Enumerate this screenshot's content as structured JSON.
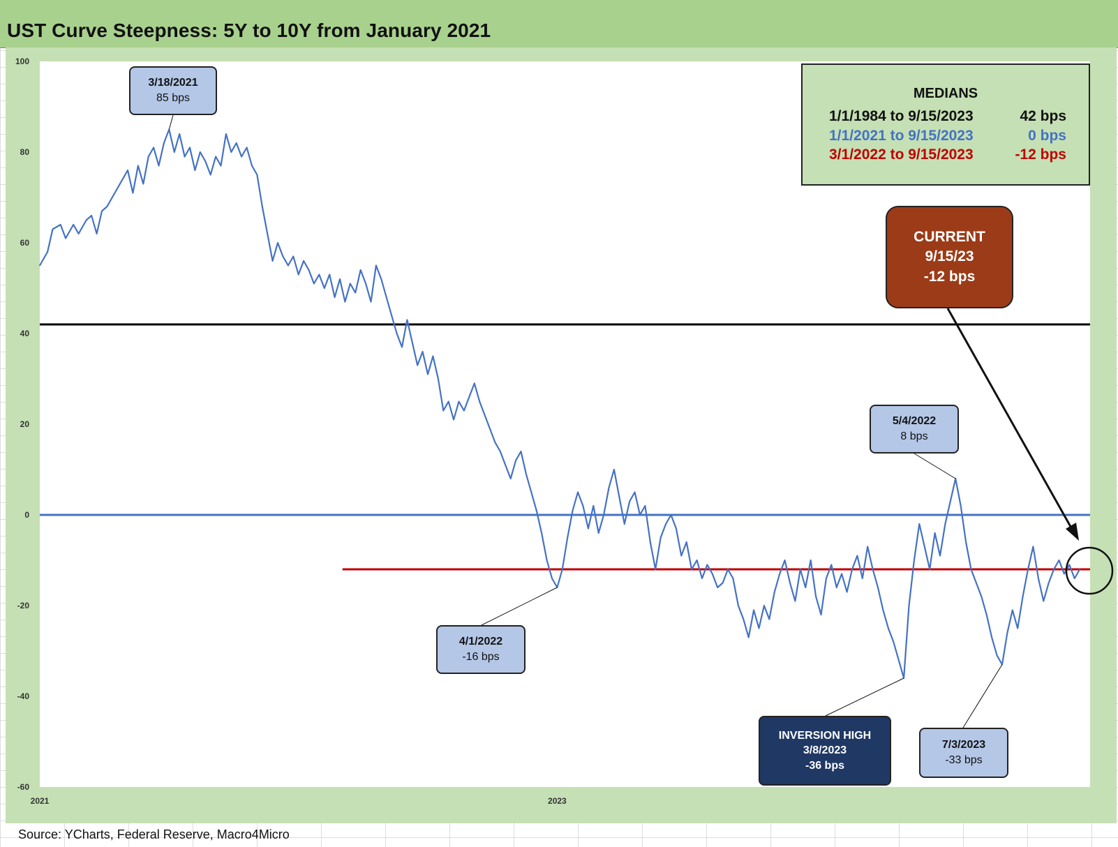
{
  "title": "UST Curve Steepness: 5Y to 10Y from January 2021",
  "source": "Source: YCharts, Federal Reserve, Macro4Micro",
  "colors": {
    "series": "#4472c4",
    "median_1984": "#000000",
    "median_2021": "#4472c4",
    "median_2022": "#c00000"
  },
  "medians": {
    "title": "MEDIANS",
    "rows": [
      {
        "label": "1/1/1984 to 9/15/2023",
        "value": "42 bps",
        "color": "#111111"
      },
      {
        "label": "1/1/2021 to 9/15/2023",
        "value": "0 bps",
        "color": "#4472c4"
      },
      {
        "label": "3/1/2022 to 9/15/2023",
        "value": "-12 bps",
        "color": "#c00000"
      }
    ]
  },
  "callouts": {
    "peak": {
      "line1": "3/18/2021",
      "line2": "85 bps"
    },
    "apr2022": {
      "line1": "4/1/2022",
      "line2": "-16 bps"
    },
    "may2022": {
      "line1": "5/4/2022",
      "line2": "8 bps"
    },
    "inversion": {
      "line1": "INVERSION HIGH",
      "line2": "3/8/2023",
      "line3": "-36 bps"
    },
    "jul2023": {
      "line1": "7/3/2023",
      "line2": "-33 bps"
    },
    "current": {
      "line1": "CURRENT",
      "line2": "9/15/23",
      "line3": "-12 bps"
    }
  },
  "chart_data": {
    "type": "line",
    "ylim": [
      -60,
      100
    ],
    "y_ticks": [
      "100",
      "80",
      "60",
      "40",
      "20",
      "0",
      "-20",
      "-40",
      "-60"
    ],
    "x_ticks": [
      "2021",
      "2023"
    ],
    "grid": false,
    "series": [
      {
        "values": [
          [
            0,
            55
          ],
          [
            0.03,
            58
          ],
          [
            0.05,
            63
          ],
          [
            0.08,
            64
          ],
          [
            0.1,
            61
          ],
          [
            0.13,
            64
          ],
          [
            0.15,
            62
          ],
          [
            0.18,
            65
          ],
          [
            0.2,
            66
          ],
          [
            0.22,
            62
          ],
          [
            0.24,
            67
          ],
          [
            0.26,
            68
          ],
          [
            0.28,
            70
          ],
          [
            0.3,
            72
          ],
          [
            0.32,
            74
          ],
          [
            0.34,
            76
          ],
          [
            0.36,
            71
          ],
          [
            0.38,
            77
          ],
          [
            0.4,
            73
          ],
          [
            0.42,
            79
          ],
          [
            0.44,
            81
          ],
          [
            0.46,
            77
          ],
          [
            0.48,
            82
          ],
          [
            0.5,
            85
          ],
          [
            0.52,
            80
          ],
          [
            0.54,
            84
          ],
          [
            0.56,
            79
          ],
          [
            0.58,
            81
          ],
          [
            0.6,
            76
          ],
          [
            0.62,
            80
          ],
          [
            0.64,
            78
          ],
          [
            0.66,
            75
          ],
          [
            0.68,
            79
          ],
          [
            0.7,
            77
          ],
          [
            0.72,
            84
          ],
          [
            0.74,
            80
          ],
          [
            0.76,
            82
          ],
          [
            0.78,
            79
          ],
          [
            0.8,
            81
          ],
          [
            0.82,
            77
          ],
          [
            0.84,
            75
          ],
          [
            0.86,
            68
          ],
          [
            0.88,
            62
          ],
          [
            0.9,
            56
          ],
          [
            0.92,
            60
          ],
          [
            0.94,
            57
          ],
          [
            0.96,
            55
          ],
          [
            0.98,
            57
          ],
          [
            1.0,
            53
          ],
          [
            1.02,
            56
          ],
          [
            1.04,
            54
          ],
          [
            1.06,
            51
          ],
          [
            1.08,
            53
          ],
          [
            1.1,
            50
          ],
          [
            1.12,
            53
          ],
          [
            1.14,
            48
          ],
          [
            1.16,
            52
          ],
          [
            1.18,
            47
          ],
          [
            1.2,
            51
          ],
          [
            1.22,
            49
          ],
          [
            1.24,
            54
          ],
          [
            1.26,
            51
          ],
          [
            1.28,
            47
          ],
          [
            1.3,
            55
          ],
          [
            1.32,
            52
          ],
          [
            1.34,
            48
          ],
          [
            1.36,
            44
          ],
          [
            1.38,
            40
          ],
          [
            1.4,
            37
          ],
          [
            1.42,
            43
          ],
          [
            1.44,
            38
          ],
          [
            1.46,
            33
          ],
          [
            1.48,
            36
          ],
          [
            1.5,
            31
          ],
          [
            1.52,
            35
          ],
          [
            1.54,
            30
          ],
          [
            1.56,
            23
          ],
          [
            1.58,
            25
          ],
          [
            1.6,
            21
          ],
          [
            1.62,
            25
          ],
          [
            1.64,
            23
          ],
          [
            1.66,
            26
          ],
          [
            1.68,
            29
          ],
          [
            1.7,
            25
          ],
          [
            1.72,
            22
          ],
          [
            1.74,
            19
          ],
          [
            1.76,
            16
          ],
          [
            1.78,
            14
          ],
          [
            1.8,
            11
          ],
          [
            1.82,
            8
          ],
          [
            1.84,
            12
          ],
          [
            1.86,
            14
          ],
          [
            1.88,
            9
          ],
          [
            1.9,
            5
          ],
          [
            1.92,
            1
          ],
          [
            1.94,
            -4
          ],
          [
            1.96,
            -10
          ],
          [
            1.98,
            -14
          ],
          [
            2.0,
            -16
          ],
          [
            2.02,
            -12
          ],
          [
            2.04,
            -5
          ],
          [
            2.06,
            1
          ],
          [
            2.08,
            5
          ],
          [
            2.1,
            2
          ],
          [
            2.12,
            -3
          ],
          [
            2.14,
            2
          ],
          [
            2.16,
            -4
          ],
          [
            2.18,
            0
          ],
          [
            2.2,
            6
          ],
          [
            2.22,
            10
          ],
          [
            2.24,
            4
          ],
          [
            2.26,
            -2
          ],
          [
            2.28,
            3
          ],
          [
            2.3,
            5
          ],
          [
            2.32,
            0
          ],
          [
            2.34,
            2
          ],
          [
            2.36,
            -6
          ],
          [
            2.38,
            -12
          ],
          [
            2.4,
            -5
          ],
          [
            2.42,
            -2
          ],
          [
            2.44,
            0
          ],
          [
            2.46,
            -3
          ],
          [
            2.48,
            -9
          ],
          [
            2.5,
            -6
          ],
          [
            2.52,
            -12
          ],
          [
            2.54,
            -10
          ],
          [
            2.56,
            -14
          ],
          [
            2.58,
            -11
          ],
          [
            2.6,
            -13
          ],
          [
            2.62,
            -16
          ],
          [
            2.64,
            -15
          ],
          [
            2.66,
            -12
          ],
          [
            2.68,
            -14
          ],
          [
            2.7,
            -20
          ],
          [
            2.72,
            -23
          ],
          [
            2.74,
            -27
          ],
          [
            2.76,
            -21
          ],
          [
            2.78,
            -25
          ],
          [
            2.8,
            -20
          ],
          [
            2.82,
            -23
          ],
          [
            2.84,
            -17
          ],
          [
            2.86,
            -13
          ],
          [
            2.88,
            -10
          ],
          [
            2.9,
            -15
          ],
          [
            2.92,
            -19
          ],
          [
            2.94,
            -12
          ],
          [
            2.96,
            -16
          ],
          [
            2.98,
            -10
          ],
          [
            3.0,
            -18
          ],
          [
            3.02,
            -22
          ],
          [
            3.04,
            -14
          ],
          [
            3.06,
            -11
          ],
          [
            3.08,
            -16
          ],
          [
            3.1,
            -13
          ],
          [
            3.12,
            -17
          ],
          [
            3.14,
            -12
          ],
          [
            3.16,
            -9
          ],
          [
            3.18,
            -14
          ],
          [
            3.2,
            -7
          ],
          [
            3.22,
            -12
          ],
          [
            3.24,
            -16
          ],
          [
            3.26,
            -21
          ],
          [
            3.28,
            -25
          ],
          [
            3.3,
            -28
          ],
          [
            3.32,
            -32
          ],
          [
            3.34,
            -36
          ],
          [
            3.36,
            -20
          ],
          [
            3.38,
            -10
          ],
          [
            3.4,
            -2
          ],
          [
            3.42,
            -7
          ],
          [
            3.44,
            -12
          ],
          [
            3.46,
            -4
          ],
          [
            3.48,
            -9
          ],
          [
            3.5,
            -2
          ],
          [
            3.52,
            3
          ],
          [
            3.54,
            8
          ],
          [
            3.56,
            2
          ],
          [
            3.58,
            -6
          ],
          [
            3.6,
            -12
          ],
          [
            3.62,
            -15
          ],
          [
            3.64,
            -18
          ],
          [
            3.66,
            -22
          ],
          [
            3.68,
            -27
          ],
          [
            3.7,
            -31
          ],
          [
            3.72,
            -33
          ],
          [
            3.74,
            -26
          ],
          [
            3.76,
            -21
          ],
          [
            3.78,
            -25
          ],
          [
            3.8,
            -18
          ],
          [
            3.82,
            -12
          ],
          [
            3.84,
            -7
          ],
          [
            3.86,
            -14
          ],
          [
            3.88,
            -19
          ],
          [
            3.9,
            -15
          ],
          [
            3.92,
            -12
          ],
          [
            3.94,
            -10
          ],
          [
            3.96,
            -13
          ],
          [
            3.98,
            -11
          ],
          [
            4.0,
            -14
          ],
          [
            4.02,
            -12
          ]
        ]
      }
    ],
    "reference_lines": [
      {
        "label": "1/1/1984 to 9/15/2023",
        "value": 42
      },
      {
        "label": "1/1/2021 to 9/15/2023",
        "value": 0
      },
      {
        "label": "3/1/2022 to 9/15/2023",
        "value": -12
      }
    ]
  }
}
